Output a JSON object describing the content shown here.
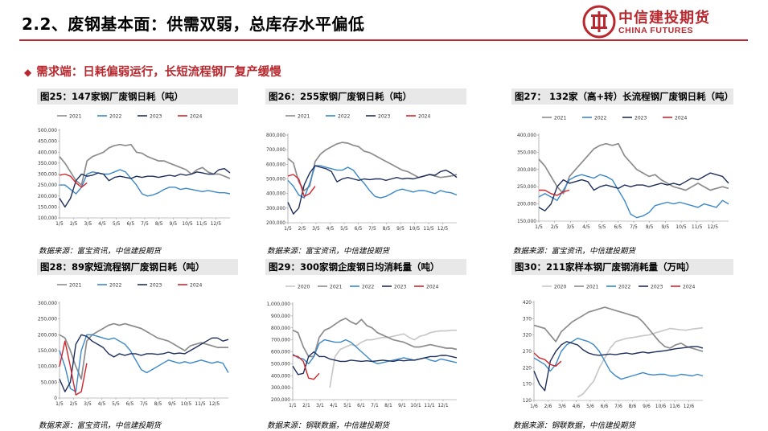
{
  "header": {
    "title": "2.2、废钢基本面：供需双弱，总库存水平偏低",
    "logo_zh": "中信建投期货",
    "logo_en": "CHINA FUTURES"
  },
  "section": {
    "bullet": "◆",
    "text": "需求端：日耗偏弱运行，长短流程钢厂复产缓慢"
  },
  "colors": {
    "accent": "#b8282e",
    "2020": "#c8c8c8",
    "2021": "#8c8c8c",
    "2022": "#3b87c8",
    "2023": "#1f2f5c",
    "2024": "#d3242c"
  },
  "chart_data": [
    {
      "id": "c25",
      "type": "line",
      "title": "图25：147家钢厂废钢日耗（吨）",
      "source": "数据来源：富宝资讯，中信建投期货",
      "xticks": [
        "1/5",
        "2/5",
        "3/5",
        "4/5",
        "5/5",
        "6/5",
        "7/5",
        "8/5",
        "9/5",
        "10/5",
        "11/5",
        "12/5"
      ],
      "ylim": [
        100000,
        500000
      ],
      "yticks": [
        "100,000",
        "150,000",
        "200,000",
        "250,000",
        "300,000",
        "350,000",
        "400,000",
        "450,000",
        "500,000"
      ],
      "series": [
        {
          "name": "2021",
          "values": [
            380000,
            350000,
            310000,
            270000,
            250000,
            360000,
            380000,
            390000,
            400000,
            420000,
            430000,
            435000,
            430000,
            435000,
            400000,
            395000,
            380000,
            370000,
            360000,
            360000,
            350000,
            340000,
            330000,
            320000,
            300000,
            320000,
            330000,
            310000,
            300000,
            300000,
            290000,
            280000
          ]
        },
        {
          "name": "2022",
          "values": [
            250000,
            250000,
            230000,
            210000,
            240000,
            300000,
            310000,
            305000,
            300000,
            300000,
            310000,
            320000,
            310000,
            280000,
            250000,
            210000,
            200000,
            205000,
            215000,
            230000,
            240000,
            240000,
            230000,
            235000,
            230000,
            225000,
            220000,
            225000,
            220000,
            215000,
            215000,
            210000
          ]
        },
        {
          "name": "2023",
          "values": [
            190000,
            150000,
            190000,
            270000,
            300000,
            290000,
            295000,
            305000,
            300000,
            270000,
            285000,
            290000,
            285000,
            280000,
            290000,
            285000,
            290000,
            290000,
            285000,
            290000,
            295000,
            290000,
            300000,
            295000,
            300000,
            310000,
            305000,
            300000,
            300000,
            320000,
            325000,
            305000
          ]
        },
        {
          "name": "2024",
          "values": [
            295000,
            300000,
            290000,
            260000,
            240000,
            260000
          ]
        }
      ]
    },
    {
      "id": "c26",
      "type": "line",
      "title": "图26：255家钢厂废钢日耗（吨）",
      "source": "数据来源：富宝资讯，中信建投期货",
      "xticks": [
        "1/5",
        "2/5",
        "3/5",
        "4/5",
        "5/5",
        "6/5",
        "7/5",
        "8/5",
        "9/5",
        "10/5",
        "11/5",
        "12/5"
      ],
      "ylim": [
        200000,
        800000
      ],
      "yticks": [
        "200,000",
        "300,000",
        "400,000",
        "500,000",
        "600,000",
        "700,000",
        "800,000"
      ],
      "series": [
        {
          "name": "2021",
          "values": [
            640000,
            610000,
            480000,
            420000,
            450000,
            620000,
            670000,
            700000,
            720000,
            740000,
            750000,
            745000,
            730000,
            720000,
            690000,
            680000,
            660000,
            640000,
            620000,
            600000,
            580000,
            560000,
            550000,
            530000,
            510000,
            520000,
            530000,
            520000,
            510000,
            515000,
            520000,
            530000
          ]
        },
        {
          "name": "2022",
          "values": [
            490000,
            450000,
            390000,
            370000,
            470000,
            590000,
            590000,
            580000,
            570000,
            560000,
            560000,
            580000,
            560000,
            510000,
            470000,
            420000,
            380000,
            370000,
            380000,
            400000,
            420000,
            430000,
            420000,
            410000,
            420000,
            420000,
            410000,
            400000,
            420000,
            410000,
            405000,
            390000
          ]
        },
        {
          "name": "2023",
          "values": [
            340000,
            260000,
            300000,
            460000,
            540000,
            590000,
            580000,
            570000,
            550000,
            480000,
            500000,
            510000,
            500000,
            490000,
            500000,
            495000,
            500000,
            500000,
            490000,
            500000,
            510000,
            500000,
            505000,
            500000,
            510000,
            520000,
            530000,
            525000,
            550000,
            560000,
            540000,
            510000
          ]
        },
        {
          "name": "2024",
          "values": [
            520000,
            530000,
            500000,
            380000,
            400000,
            450000
          ]
        }
      ]
    },
    {
      "id": "c27",
      "type": "line",
      "title": "图27： 132家（高+转）长流程钢厂废钢日耗（吨）",
      "source": "数据来源：富宝资讯，中信建投期货",
      "xticks": [
        "1/5",
        "2/5",
        "3/5",
        "4/5",
        "5/5",
        "6/5",
        "7/5",
        "8/5",
        "9/5",
        "10/5",
        "11/5",
        "12/5"
      ],
      "ylim": [
        150000,
        400000
      ],
      "yticks": [
        "150,000",
        "200,000",
        "250,000",
        "300,000",
        "350,000",
        "400,000"
      ],
      "series": [
        {
          "name": "2021",
          "values": [
            330000,
            310000,
            280000,
            250000,
            230000,
            280000,
            300000,
            320000,
            340000,
            360000,
            370000,
            375000,
            370000,
            375000,
            340000,
            320000,
            300000,
            290000,
            280000,
            285000,
            270000,
            260000,
            250000,
            245000,
            240000,
            250000,
            260000,
            250000,
            240000,
            245000,
            250000,
            245000
          ]
        },
        {
          "name": "2022",
          "values": [
            220000,
            230000,
            220000,
            210000,
            240000,
            270000,
            280000,
            285000,
            280000,
            275000,
            285000,
            280000,
            270000,
            240000,
            210000,
            170000,
            160000,
            165000,
            175000,
            195000,
            200000,
            205000,
            200000,
            205000,
            200000,
            195000,
            190000,
            200000,
            195000,
            190000,
            210000,
            200000
          ]
        },
        {
          "name": "2023",
          "values": [
            190000,
            180000,
            200000,
            250000,
            270000,
            260000,
            265000,
            270000,
            265000,
            240000,
            250000,
            255000,
            250000,
            245000,
            255000,
            250000,
            255000,
            255000,
            250000,
            255000,
            260000,
            255000,
            260000,
            255000,
            265000,
            275000,
            270000,
            280000,
            290000,
            285000,
            280000,
            260000
          ]
        },
        {
          "name": "2024",
          "values": [
            240000,
            240000,
            230000,
            225000,
            235000,
            240000
          ]
        }
      ]
    },
    {
      "id": "c28",
      "type": "line",
      "title": "图28：89家短流程钢厂废钢日耗（吨）",
      "source": "数据来源：富宝资讯，中信建投期货",
      "xticks": [
        "1/5",
        "2/5",
        "3/5",
        "4/5",
        "5/5",
        "6/5",
        "7/5",
        "8/5",
        "9/5",
        "10/5",
        "11/5",
        "12/5"
      ],
      "ylim": [
        0,
        300000
      ],
      "yticks": [
        "0",
        "50,000",
        "100,000",
        "150,000",
        "200,000",
        "250,000",
        "300,000"
      ],
      "series": [
        {
          "name": "2021",
          "values": [
            200000,
            190000,
            150000,
            100000,
            60000,
            180000,
            200000,
            210000,
            220000,
            230000,
            235000,
            230000,
            235000,
            230000,
            225000,
            220000,
            210000,
            200000,
            190000,
            185000,
            180000,
            170000,
            160000,
            150000,
            165000,
            170000,
            175000,
            170000,
            165000,
            160000,
            160000,
            160000
          ]
        },
        {
          "name": "2022",
          "values": [
            150000,
            100000,
            30000,
            20000,
            150000,
            200000,
            200000,
            195000,
            190000,
            185000,
            190000,
            180000,
            170000,
            150000,
            120000,
            90000,
            80000,
            90000,
            100000,
            110000,
            120000,
            115000,
            110000,
            115000,
            110000,
            115000,
            120000,
            115000,
            110000,
            115000,
            110000,
            80000
          ]
        },
        {
          "name": "2023",
          "values": [
            60000,
            20000,
            50000,
            170000,
            200000,
            195000,
            180000,
            170000,
            160000,
            140000,
            130000,
            140000,
            135000,
            140000,
            140000,
            135000,
            140000,
            140000,
            138000,
            140000,
            145000,
            140000,
            142000,
            140000,
            150000,
            160000,
            170000,
            180000,
            190000,
            190000,
            180000,
            185000
          ]
        },
        {
          "name": "2024",
          "values": [
            100000,
            180000,
            100000,
            10000,
            20000,
            110000
          ]
        }
      ]
    },
    {
      "id": "c29",
      "type": "line",
      "title": "图29：300家钢企废钢日均消耗量（吨）",
      "source": "数据来源：钢联数据，中信建投期货",
      "xticks": [
        "1/1",
        "2/1",
        "3/1",
        "4/1",
        "5/1",
        "6/1",
        "7/1",
        "8/1",
        "9/1",
        "10/1",
        "11/1",
        "12/1"
      ],
      "ylim": [
        200000,
        1000000
      ],
      "yticks": [
        "200,000",
        "300,000",
        "400,000",
        "500,000",
        "600,000",
        "700,000",
        "800,000",
        "900,000",
        "1,000,000"
      ],
      "series": [
        {
          "name": "2020",
          "values": [
            null,
            null,
            null,
            null,
            null,
            null,
            null,
            300000,
            560000,
            620000,
            640000,
            660000,
            650000,
            680000,
            700000,
            700000,
            710000,
            720000,
            720000,
            730000,
            740000,
            750000,
            720000,
            700000,
            730000,
            740000,
            760000,
            770000,
            775000,
            775000,
            780000,
            780000
          ]
        },
        {
          "name": "2021",
          "values": [
            780000,
            760000,
            640000,
            560000,
            560000,
            720000,
            780000,
            800000,
            830000,
            860000,
            880000,
            850000,
            830000,
            870000,
            820000,
            800000,
            760000,
            740000,
            720000,
            700000,
            690000,
            680000,
            660000,
            640000,
            640000,
            650000,
            660000,
            650000,
            640000,
            630000,
            630000,
            620000
          ]
        },
        {
          "name": "2022",
          "values": [
            580000,
            550000,
            540000,
            500000,
            560000,
            670000,
            700000,
            690000,
            680000,
            680000,
            700000,
            680000,
            640000,
            600000,
            560000,
            520000,
            500000,
            510000,
            520000,
            530000,
            540000,
            550000,
            540000,
            530000,
            540000,
            550000,
            530000,
            520000,
            540000,
            530000,
            520000,
            510000
          ]
        },
        {
          "name": "2023",
          "values": [
            480000,
            410000,
            420000,
            560000,
            600000,
            560000,
            560000,
            540000,
            530000,
            520000,
            520000,
            530000,
            525000,
            520000,
            525000,
            520000,
            525000,
            530000,
            525000,
            520000,
            530000,
            525000,
            530000,
            530000,
            540000,
            550000,
            560000,
            560000,
            570000,
            570000,
            560000,
            550000
          ]
        },
        {
          "name": "2024",
          "values": [
            570000,
            560000,
            520000,
            380000,
            370000,
            420000
          ]
        }
      ]
    },
    {
      "id": "c30",
      "type": "line",
      "title": "图30：211家样本钢厂废钢消耗量（万吨）",
      "source": "数据来源：钢联数据，中信建投期货",
      "xticks": [
        "1/6",
        "2/6",
        "3/6",
        "4/6",
        "5/6",
        "6/6",
        "7/6",
        "8/6",
        "9/6",
        "10/6",
        "11/6",
        "12/6"
      ],
      "ylim": [
        120,
        420
      ],
      "yticks": [
        "120",
        "170",
        "220",
        "270",
        "320",
        "370",
        "420"
      ],
      "series": [
        {
          "name": "2020",
          "values": [
            null,
            null,
            null,
            null,
            null,
            null,
            null,
            null,
            130,
            140,
            160,
            180,
            220,
            250,
            280,
            300,
            305,
            310,
            312,
            315,
            318,
            320,
            325,
            330,
            335,
            340,
            338,
            336,
            335,
            338,
            340,
            342
          ]
        },
        {
          "name": "2021",
          "values": [
            350,
            345,
            340,
            320,
            300,
            330,
            345,
            360,
            370,
            380,
            390,
            395,
            400,
            405,
            400,
            395,
            390,
            385,
            380,
            375,
            360,
            340,
            320,
            300,
            285,
            280,
            290,
            295,
            285,
            280,
            275,
            270
          ]
        },
        {
          "name": "2022",
          "values": [
            250,
            240,
            230,
            210,
            230,
            270,
            290,
            300,
            310,
            305,
            300,
            290,
            270,
            240,
            210,
            195,
            185,
            190,
            195,
            200,
            205,
            200,
            198,
            200,
            200,
            195,
            195,
            200,
            198,
            195,
            200,
            195
          ]
        },
        {
          "name": "2023",
          "values": [
            210,
            170,
            150,
            240,
            270,
            290,
            300,
            295,
            290,
            275,
            265,
            260,
            258,
            260,
            262,
            260,
            263,
            265,
            262,
            265,
            268,
            265,
            268,
            270,
            272,
            275,
            278,
            280,
            282,
            285,
            285,
            280
          ]
        },
        {
          "name": "2024",
          "values": [
            265,
            250,
            245,
            230,
            225,
            240
          ]
        }
      ]
    }
  ]
}
